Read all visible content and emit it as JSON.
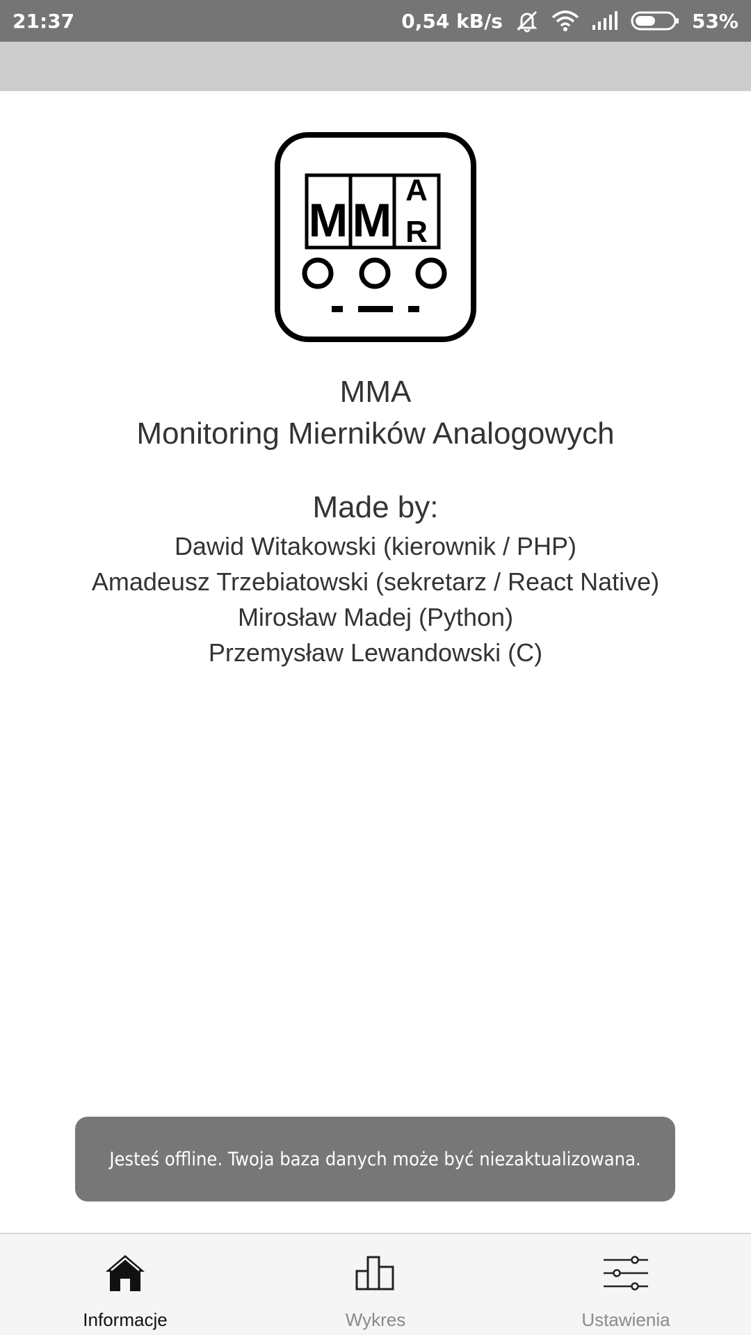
{
  "status_bar": {
    "time": "21:37",
    "network_speed": "0,54 kB/s",
    "battery_percent": "53%",
    "battery_level": 0.53,
    "icons": [
      "silent-icon",
      "wifi-icon",
      "signal-icon",
      "battery-icon"
    ]
  },
  "app": {
    "name": "MMA",
    "full_name": "Monitoring Mierników Analogowych",
    "logo_letters": [
      "M",
      "M",
      "A",
      "R"
    ]
  },
  "credits": {
    "heading": "Made by:",
    "authors": [
      "Dawid Witakowski (kierownik / PHP)",
      "Amadeusz Trzebiatowski (sekretarz / React Native)",
      "Mirosław Madej (Python)",
      "Przemysław Lewandowski (C)"
    ]
  },
  "toast": {
    "message": "Jesteś offline. Twoja baza danych może być niezaktualizowana."
  },
  "bottom_nav": {
    "items": [
      {
        "label": "Informacje",
        "icon": "home-icon",
        "active": true
      },
      {
        "label": "Wykres",
        "icon": "chart-icon",
        "active": false
      },
      {
        "label": "Ustawienia",
        "icon": "sliders-icon",
        "active": false
      }
    ],
    "colors": {
      "active": "#111111",
      "inactive": "#8a8a8a"
    }
  }
}
